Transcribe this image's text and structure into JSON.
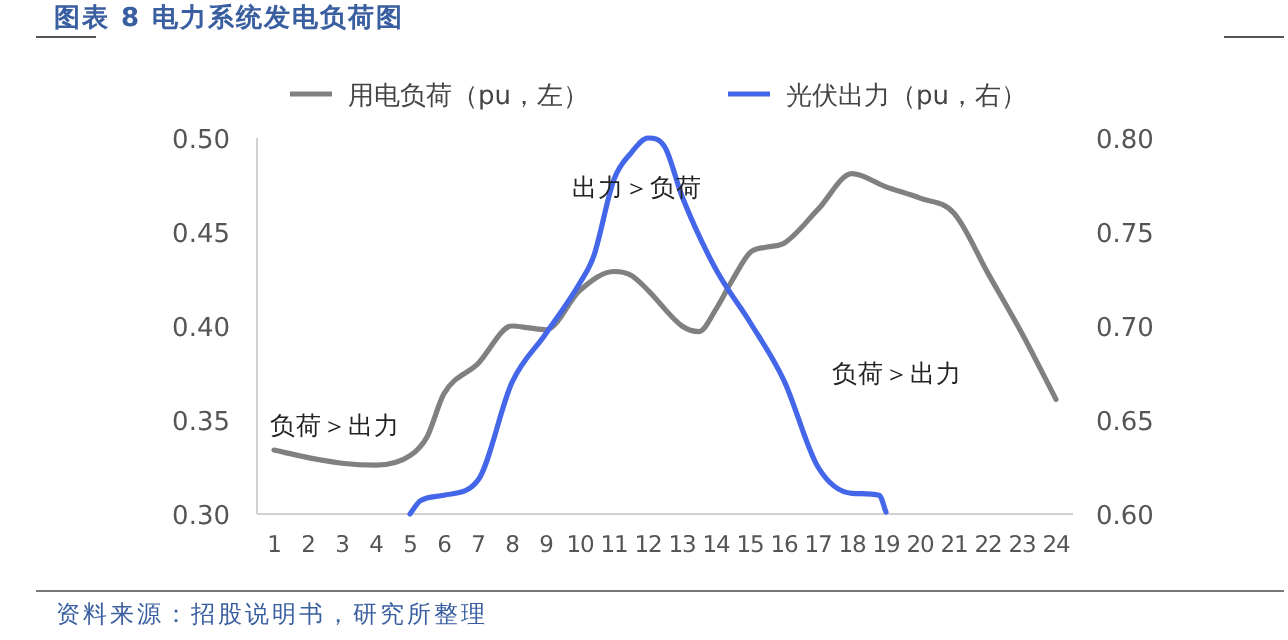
{
  "chart_data": {
    "type": "line",
    "title": "图表 8 电力系统发电负荷图",
    "legend": "top",
    "xlim": [
      0.5,
      24.5
    ],
    "xticks": [
      1,
      2,
      3,
      4,
      5,
      6,
      7,
      8,
      9,
      10,
      11,
      12,
      13,
      14,
      15,
      16,
      17,
      18,
      19,
      20,
      21,
      22,
      23,
      24
    ],
    "ylim": [
      0.3,
      0.5
    ],
    "yticks": [
      {
        "value": 0.3,
        "label": "0.30"
      },
      {
        "value": 0.35,
        "label": "0.35"
      },
      {
        "value": 0.4,
        "label": "0.40"
      },
      {
        "value": 0.45,
        "label": "0.45"
      },
      {
        "value": 0.5,
        "label": "0.50"
      }
    ],
    "y2lim": [
      0.6,
      0.8
    ],
    "y2ticks": [
      {
        "value": 0.6,
        "label": "0.60"
      },
      {
        "value": 0.65,
        "label": "0.65"
      },
      {
        "value": 0.7,
        "label": "0.70"
      },
      {
        "value": 0.75,
        "label": "0.75"
      },
      {
        "value": 0.8,
        "label": "0.80"
      }
    ],
    "series": [
      {
        "name": "用电负荷（pu，左）",
        "color": "#808080",
        "x": [
          1,
          2,
          3,
          4,
          5,
          5.5,
          6,
          7,
          8,
          8.5,
          9,
          10,
          11,
          11.5,
          12,
          13,
          13.5,
          14,
          14.5,
          15,
          15.5,
          16,
          17,
          18,
          19,
          20,
          21,
          22,
          23,
          24
        ],
        "values": [
          0.334,
          0.33,
          0.327,
          0.326,
          0.331,
          0.341,
          0.364,
          0.38,
          0.4,
          0.399,
          0.398,
          0.419,
          0.429,
          0.427,
          0.419,
          0.4,
          0.397,
          0.409,
          0.425,
          0.439,
          0.442,
          0.444,
          0.462,
          0.481,
          0.474,
          0.468,
          0.46,
          0.428,
          0.396,
          0.361
        ]
      },
      {
        "name": "光伏出力（pu，右）",
        "color": "#4466e8",
        "axis": "y2",
        "x": [
          5,
          5.3,
          6,
          7,
          8,
          9,
          10,
          10.4,
          11,
          11.5,
          12,
          12.5,
          13,
          14,
          15,
          16,
          17,
          18,
          18.8,
          19
        ],
        "values": [
          0.6,
          0.607,
          0.61,
          0.618,
          0.67,
          0.696,
          0.723,
          0.737,
          0.778,
          0.792,
          0.8,
          0.795,
          0.769,
          0.73,
          0.702,
          0.671,
          0.625,
          0.611,
          0.61,
          0.601
        ]
      }
    ],
    "annotations": [
      "出力＞负荷",
      "负荷＞出力",
      "负荷＞出力",
      "资料来源：招股说明书，研究所整理"
    ]
  }
}
